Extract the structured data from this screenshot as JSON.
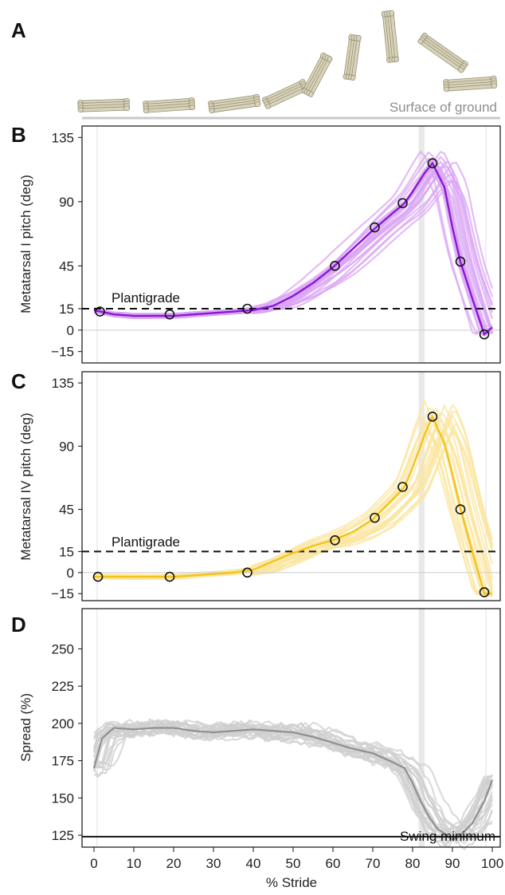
{
  "panel_labels": {
    "a": "A",
    "b": "B",
    "c": "C",
    "d": "D"
  },
  "ground_label": "Surface of ground",
  "bone_color": "#d8d3b8",
  "highlight_band": {
    "x_start": 81.5,
    "x_end": 83.0,
    "color": "#e9e9e9"
  },
  "chart_data": [
    {
      "panel": "B",
      "type": "line",
      "ylabel": "Metatarsal I pitch (deg)",
      "ylim": [
        -23,
        143
      ],
      "yticks": [
        "135",
        "90",
        "45",
        "15",
        "0",
        "−15"
      ],
      "ytick_values": [
        135,
        90,
        45,
        15,
        0,
        -15
      ],
      "reference_line": {
        "y": 15,
        "label": "Plantigrade",
        "style": "dashed"
      },
      "color": "#8b17d6",
      "trial_color": "#d9a6f4",
      "series": [
        {
          "x": [
            0,
            5,
            10,
            15,
            20,
            25,
            30,
            35,
            40,
            45,
            50,
            55,
            60,
            65,
            70,
            75,
            78,
            80,
            83,
            85,
            88,
            90,
            92,
            95,
            98,
            100
          ],
          "y": [
            14,
            11,
            10,
            10,
            10,
            11,
            12,
            13,
            14,
            17,
            24,
            33,
            44,
            57,
            70,
            82,
            89,
            97,
            110,
            117,
            100,
            72,
            48,
            22,
            -3,
            2
          ]
        }
      ],
      "markers": {
        "x": [
          1.5,
          19,
          38.5,
          60.5,
          70.5,
          77.5,
          85,
          92,
          98
        ],
        "y": [
          13,
          11,
          15,
          45,
          72,
          89,
          117,
          48,
          -3
        ]
      }
    },
    {
      "panel": "C",
      "type": "line",
      "ylabel": "Metatarsal IV pitch (deg)",
      "ylim": [
        -20,
        143
      ],
      "yticks": [
        "135",
        "90",
        "45",
        "15",
        "0",
        "−15"
      ],
      "ytick_values": [
        135,
        90,
        45,
        15,
        0,
        -15
      ],
      "reference_line": {
        "y": 15,
        "label": "Plantigrade",
        "style": "dashed"
      },
      "color": "#f2c41a",
      "trial_color": "#fbe6a0",
      "series": [
        {
          "x": [
            0,
            5,
            10,
            15,
            20,
            25,
            30,
            35,
            40,
            45,
            50,
            55,
            60,
            65,
            70,
            75,
            78,
            80,
            83,
            85,
            88,
            90,
            92,
            95,
            98,
            100
          ],
          "y": [
            -3,
            -3,
            -3,
            -3,
            -3,
            -2,
            -1,
            0,
            2,
            8,
            14,
            19,
            23,
            29,
            38,
            52,
            61,
            75,
            98,
            111,
            92,
            70,
            46,
            15,
            -15,
            -15
          ]
        }
      ],
      "markers": {
        "x": [
          1,
          19,
          38.5,
          60.5,
          70.5,
          77.5,
          85,
          92,
          98
        ],
        "y": [
          -3,
          -3,
          0,
          23,
          39,
          61,
          111,
          45,
          -14
        ]
      }
    },
    {
      "panel": "D",
      "type": "line",
      "ylabel": "Spread (%)",
      "xlabel": "% Stride",
      "ylim": [
        117,
        277
      ],
      "yticks": [
        "250",
        "225",
        "200",
        "175",
        "150",
        "125"
      ],
      "ytick_values": [
        250,
        225,
        200,
        175,
        150,
        125
      ],
      "xlim": [
        -3,
        102
      ],
      "xticks": [
        "0",
        "10",
        "20",
        "30",
        "40",
        "50",
        "60",
        "70",
        "80",
        "90",
        "100"
      ],
      "xtick_values": [
        0,
        10,
        20,
        30,
        40,
        50,
        60,
        70,
        80,
        90,
        100
      ],
      "reference_line": {
        "y": 124,
        "label": "Swing minimum",
        "style": "solid"
      },
      "color": "#8f8f8f",
      "trial_color": "#cfcfcf",
      "series": [
        {
          "x": [
            0,
            2,
            5,
            10,
            15,
            20,
            25,
            30,
            35,
            40,
            45,
            50,
            55,
            60,
            65,
            70,
            75,
            78,
            80,
            82,
            84,
            86,
            88,
            90,
            92,
            95,
            98,
            100
          ],
          "y": [
            170,
            190,
            197,
            196,
            197,
            197,
            195,
            194,
            195,
            196,
            195,
            194,
            191,
            187,
            183,
            180,
            174,
            170,
            160,
            148,
            138,
            130,
            126,
            122,
            125,
            133,
            148,
            162
          ]
        }
      ]
    }
  ]
}
